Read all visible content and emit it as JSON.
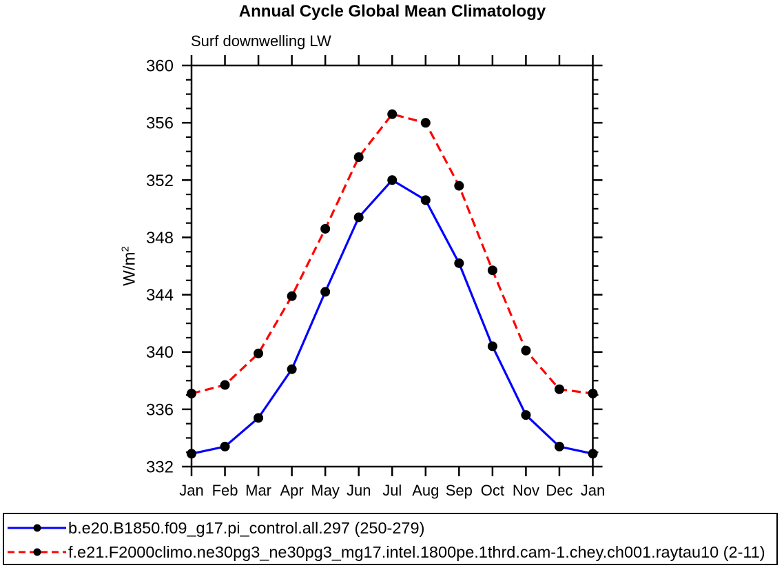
{
  "title": "Annual Cycle Global Mean Climatology",
  "subtitle": "Surf downwelling LW",
  "y_axis_title": {
    "base": "W/m",
    "exponent": "2"
  },
  "chart_data": {
    "type": "line",
    "title": "Annual Cycle Global Mean Climatology",
    "subtitle": "Surf downwelling LW",
    "ylabel": "W/m^2",
    "xlabel": "",
    "x_categories": [
      "Jan",
      "Feb",
      "Mar",
      "Apr",
      "May",
      "Jun",
      "Jul",
      "Aug",
      "Sep",
      "Oct",
      "Nov",
      "Dec",
      "Jan"
    ],
    "ylim": [
      332,
      360
    ],
    "ytick_labels": [
      332,
      336,
      340,
      344,
      348,
      352,
      356,
      360
    ],
    "ytick_major_step": 4,
    "ytick_minor_step": 1,
    "grid": false,
    "legend_position": "bottom-box",
    "frame_color": "#000000",
    "series": [
      {
        "name": "b.e20.B1850.f09_g17.pi_control.all.297 (250-279)",
        "color": "#0000ff",
        "line_style": "solid",
        "marker": "filled-circle",
        "marker_color": "#000000",
        "values": [
          332.9,
          333.4,
          335.4,
          338.8,
          344.2,
          349.4,
          352.0,
          350.6,
          346.2,
          340.4,
          335.6,
          333.4,
          332.9
        ]
      },
      {
        "name": "f.e21.F2000climo.ne30pg3_ne30pg3_mg17.intel.1800pe.1thrd.cam-1.chey.ch001.raytau10 (2-11)",
        "color": "#ff0000",
        "line_style": "dashed",
        "marker": "filled-circle",
        "marker_color": "#000000",
        "values": [
          337.1,
          337.7,
          339.9,
          343.9,
          348.6,
          353.6,
          356.6,
          356.0,
          351.6,
          345.7,
          340.1,
          337.4,
          337.1
        ]
      }
    ]
  }
}
